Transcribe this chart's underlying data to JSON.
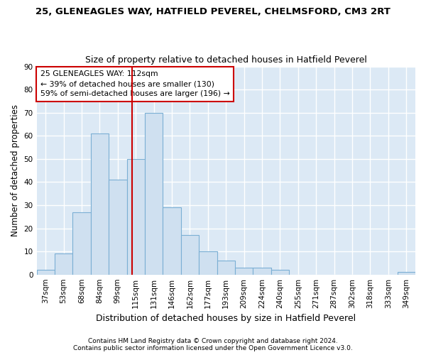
{
  "title": "25, GLENEAGLES WAY, HATFIELD PEVEREL, CHELMSFORD, CM3 2RT",
  "subtitle": "Size of property relative to detached houses in Hatfield Peverel",
  "xlabel": "Distribution of detached houses by size in Hatfield Peverel",
  "ylabel": "Number of detached properties",
  "bar_labels": [
    "37sqm",
    "53sqm",
    "68sqm",
    "84sqm",
    "99sqm",
    "115sqm",
    "131sqm",
    "146sqm",
    "162sqm",
    "177sqm",
    "193sqm",
    "209sqm",
    "224sqm",
    "240sqm",
    "255sqm",
    "271sqm",
    "287sqm",
    "302sqm",
    "318sqm",
    "333sqm",
    "349sqm"
  ],
  "bar_values": [
    2,
    9,
    27,
    61,
    41,
    50,
    70,
    29,
    17,
    10,
    6,
    3,
    3,
    2,
    0,
    0,
    0,
    0,
    0,
    0,
    1
  ],
  "bar_color": "#cfe0f0",
  "bar_edgecolor": "#7bafd4",
  "fig_background_color": "#ffffff",
  "plot_background_color": "#dce9f5",
  "grid_color": "#ffffff",
  "annotation_line1": "25 GLENEAGLES WAY: 112sqm",
  "annotation_line2": "← 39% of detached houses are smaller (130)",
  "annotation_line3": "59% of semi-detached houses are larger (196) →",
  "annotation_box_facecolor": "#ffffff",
  "annotation_box_edgecolor": "#cc0000",
  "ylim": [
    0,
    90
  ],
  "yticks": [
    0,
    10,
    20,
    30,
    40,
    50,
    60,
    70,
    80,
    90
  ],
  "footnote1": "Contains HM Land Registry data © Crown copyright and database right 2024.",
  "footnote2": "Contains public sector information licensed under the Open Government Licence v3.0."
}
